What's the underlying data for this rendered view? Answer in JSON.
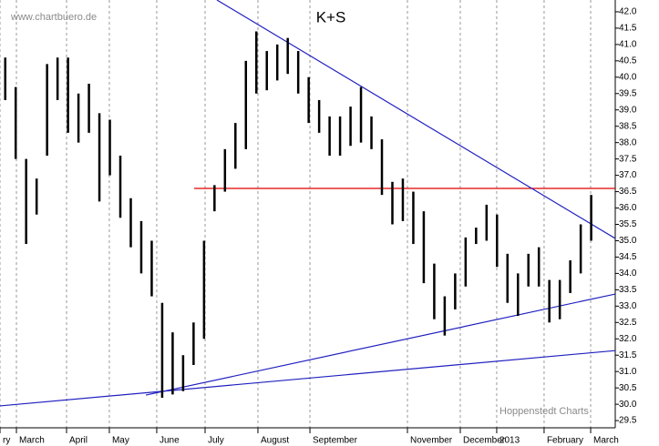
{
  "chart_data": {
    "type": "hl-bars",
    "title": "K+S",
    "watermark": "www.chartbuero.de",
    "source": "Hoppenstedt Charts",
    "color": "#000000",
    "grid": "x",
    "x": [
      0,
      1,
      2,
      3,
      4,
      5,
      6,
      7,
      8,
      9,
      10,
      11,
      12,
      13,
      14,
      15,
      16,
      17,
      18,
      19,
      20,
      21,
      22,
      23,
      24,
      25,
      26,
      27,
      28,
      29,
      30,
      31,
      32,
      33,
      34,
      35,
      36,
      37,
      38,
      39,
      40,
      41,
      42,
      43,
      44,
      45,
      46,
      47,
      48,
      49,
      50,
      51,
      52,
      53,
      54,
      55,
      56
    ],
    "series": [
      {
        "name": "High",
        "values": [
          40.6,
          39.7,
          37.5,
          36.9,
          40.4,
          40.6,
          40.6,
          39.5,
          39.8,
          38.9,
          38.7,
          37.6,
          36.3,
          35.6,
          35.0,
          33.1,
          32.2,
          31.5,
          32.5,
          35.0,
          36.7,
          37.8,
          38.6,
          40.5,
          41.4,
          40.8,
          41.0,
          41.2,
          40.8,
          40.0,
          39.3,
          38.8,
          38.8,
          39.1,
          39.7,
          38.8,
          38.1,
          36.8,
          36.9,
          36.5,
          35.9,
          34.3,
          33.3,
          34.0,
          35.1,
          35.4,
          36.1,
          35.8,
          34.6,
          34.0,
          34.6,
          34.8,
          33.8,
          33.8,
          34.4,
          35.5,
          36.4
        ]
      },
      {
        "name": "Low",
        "values": [
          39.3,
          37.5,
          34.9,
          35.8,
          37.6,
          39.3,
          38.3,
          38.0,
          38.3,
          36.2,
          37.0,
          35.7,
          34.8,
          34.0,
          33.3,
          30.2,
          30.3,
          30.4,
          31.2,
          32.0,
          35.9,
          36.5,
          37.2,
          37.8,
          39.5,
          39.6,
          39.9,
          40.1,
          39.5,
          38.6,
          38.3,
          37.6,
          37.6,
          37.9,
          38.0,
          37.8,
          36.4,
          35.5,
          35.6,
          34.9,
          33.7,
          32.6,
          32.1,
          32.9,
          33.6,
          34.9,
          35.0,
          34.2,
          33.1,
          32.7,
          33.6,
          33.6,
          32.5,
          32.6,
          33.4,
          34.0,
          35.0
        ]
      }
    ],
    "xlim": [
      -0.5,
      58.3
    ],
    "xticks": [
      {
        "value": -0.5,
        "label": "ry"
      },
      {
        "value": 1.07,
        "label": "March"
      },
      {
        "value": 5.86,
        "label": "April"
      },
      {
        "value": 9.95,
        "label": "May"
      },
      {
        "value": 14.48,
        "label": "June"
      },
      {
        "value": 19.1,
        "label": "July"
      },
      {
        "value": 24.15,
        "label": "August"
      },
      {
        "value": 29.12,
        "label": "September"
      },
      {
        "value": 38.44,
        "label": "November"
      },
      {
        "value": 43.49,
        "label": "December"
      },
      {
        "value": 46.97,
        "label": "2013"
      },
      {
        "value": 51.5,
        "label": "February"
      },
      {
        "value": 55.95,
        "label": "March"
      }
    ],
    "ylim": [
      29.28,
      42.36
    ],
    "yticks": [
      29.5,
      {
        "value": 30,
        "label": "30.0"
      },
      30.5,
      {
        "value": 31,
        "label": "31.0"
      },
      31.5,
      {
        "value": 32,
        "label": "32.0"
      },
      32.5,
      {
        "value": 33,
        "label": "33.0"
      },
      33.5,
      {
        "value": 34,
        "label": "34.0"
      },
      34.5,
      {
        "value": 35,
        "label": "35.0"
      },
      35.5,
      {
        "value": 36,
        "label": "36.0"
      },
      36.5,
      {
        "value": 37,
        "label": "37.0"
      },
      37.5,
      {
        "value": 38,
        "label": "38.0"
      },
      38.5,
      {
        "value": 39,
        "label": "39.0"
      },
      39.5,
      {
        "value": 40,
        "label": "40.0"
      },
      40.5,
      {
        "value": 41,
        "label": "41.0"
      },
      41.5,
      {
        "value": 42,
        "label": "42.0"
      }
    ],
    "trendlines": [
      {
        "from": [
          18.05,
          36.6
        ],
        "to": [
          58.3,
          36.6
        ],
        "color": "#e00000"
      },
      {
        "from": [
          20.23,
          42.36
        ],
        "to": [
          58.3,
          35.07
        ],
        "color": "#2020c0"
      },
      {
        "from": [
          13.44,
          30.28
        ],
        "to": [
          58.3,
          33.37
        ],
        "color": "#2020c0"
      },
      {
        "from": [
          -0.5,
          29.95
        ],
        "to": [
          58.3,
          31.64
        ],
        "color": "#2020c0"
      }
    ]
  }
}
